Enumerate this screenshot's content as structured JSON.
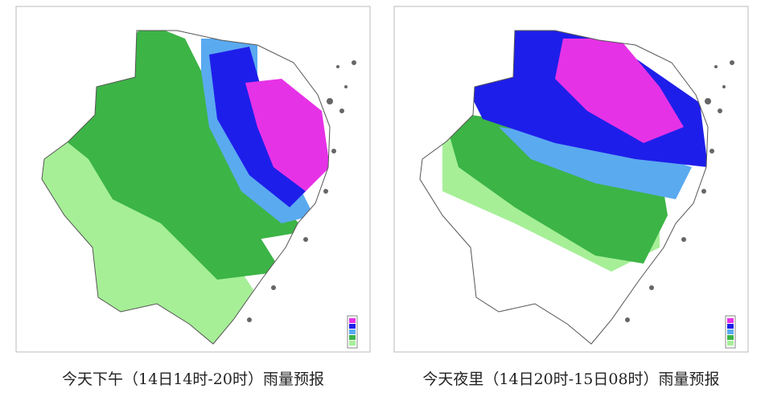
{
  "maps": [
    {
      "caption": "今天下午（14日14时-20时）雨量预报"
    },
    {
      "caption": "今天夜里（14日20时-15日08时）雨量预报"
    }
  ]
}
